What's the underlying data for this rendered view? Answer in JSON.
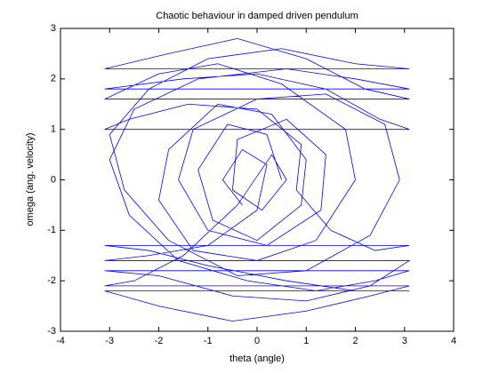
{
  "chart_data": {
    "type": "line",
    "title": "Chaotic behaviour in damped driven pendulum",
    "xlabel": "theta (angle)",
    "ylabel": "omega (ang. velocity)",
    "color": "#0000ff",
    "xlim": [
      -4,
      4
    ],
    "xticks": [
      -4,
      -3,
      -2,
      -1,
      0,
      1,
      2,
      3,
      4
    ],
    "ylim": [
      -3,
      3
    ],
    "yticks": [
      -3,
      -2,
      -1,
      0,
      1,
      2,
      3
    ],
    "grid": false,
    "x": [
      0.5,
      0.2,
      -0.6,
      -1.2,
      -0.9,
      0,
      0.9,
      1.0,
      0.3,
      -0.8,
      -1.8,
      -2.0,
      -1.3,
      0,
      1.2,
      2.0,
      1.8,
      0.5,
      -0.8,
      -2,
      -3.1,
      3.1,
      2.2,
      1,
      -0.4,
      -1.8,
      -3.1,
      3.1,
      2,
      0.5,
      -1,
      -2.2,
      -3.0,
      -2.7,
      -1.8,
      -0.4,
      1,
      2.3,
      2.9,
      2.6,
      1.4,
      0,
      -1.3,
      -1.6,
      -1.0,
      0.2,
      1.3,
      1.4,
      0.6,
      -0.4,
      -0.5,
      0.1,
      0.6,
      0.3,
      -0.4,
      -1.5,
      -2.5,
      -3.1,
      3.1,
      2.3,
      1,
      -0.5,
      -2,
      -3.1,
      3.1,
      2,
      0.6,
      -1,
      -2.2,
      -3.1,
      3.1,
      2.4,
      1.5,
      0.8,
      0.9,
      0,
      -1.4,
      -2.6,
      -3.1,
      3.1,
      2.5,
      1.4,
      0,
      -1.5,
      -3.1,
      3.1,
      2,
      0.6,
      -1.2,
      -2.5,
      -3.0,
      -2.6,
      -1.6,
      -0.2,
      1.2,
      2.4,
      3.1,
      -3.1,
      -2,
      -0.5,
      1,
      2.3,
      3.1,
      -3.1,
      -2.2,
      -1,
      0,
      0.2,
      -0.3,
      -0.7,
      -0.3
    ],
    "values": [
      0,
      0.9,
      1.1,
      0.2,
      -0.8,
      -1.2,
      -0.5,
      0.4,
      1.3,
      1.5,
      0.6,
      -0.4,
      -1.4,
      -1.6,
      -1.2,
      0,
      1.0,
      1.9,
      2.3,
      2.1,
      1.6,
      1.6,
      1.8,
      2.4,
      2.8,
      2.5,
      2.2,
      2.2,
      2.3,
      2.6,
      2.4,
      1.8,
      0.9,
      -0.2,
      -1.2,
      -1.9,
      -1.8,
      -1.1,
      0,
      1.1,
      1.7,
      1.6,
      1.0,
      0,
      -1.0,
      -1.3,
      -0.6,
      0.5,
      1.2,
      0.8,
      -0.2,
      -0.6,
      0,
      0.5,
      -0.5,
      -1.5,
      -2.0,
      -2.1,
      -2.1,
      -2.3,
      -2.6,
      -2.8,
      -2.5,
      -2.2,
      -2.2,
      -2.2,
      -2.0,
      -1.7,
      -1.4,
      -1.3,
      -1.3,
      -1.4,
      -1.0,
      -0.2,
      0.7,
      1.4,
      1.5,
      1.2,
      1.0,
      1.0,
      1.2,
      1.8,
      2.1,
      2.0,
      1.8,
      1.8,
      2.0,
      2.2,
      2.0,
      1.4,
      0.4,
      -0.7,
      -1.6,
      -2.0,
      -2.2,
      -2.0,
      -1.8,
      -1.8,
      -1.9,
      -2.3,
      -2.4,
      -2.1,
      -1.6,
      -1.6,
      -1.5,
      -1.3,
      -0.6,
      0.3,
      0.6,
      0,
      -0.5
    ]
  }
}
